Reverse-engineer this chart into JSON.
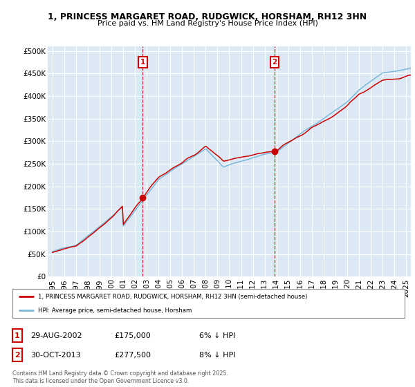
{
  "title1": "1, PRINCESS MARGARET ROAD, RUDGWICK, HORSHAM, RH12 3HN",
  "title2": "Price paid vs. HM Land Registry's House Price Index (HPI)",
  "bg_color": "#dce9f5",
  "ylim": [
    0,
    510000
  ],
  "yticks": [
    0,
    50000,
    100000,
    150000,
    200000,
    250000,
    300000,
    350000,
    400000,
    450000,
    500000
  ],
  "ytick_labels": [
    "£0",
    "£50K",
    "£100K",
    "£150K",
    "£200K",
    "£250K",
    "£300K",
    "£350K",
    "£400K",
    "£450K",
    "£500K"
  ],
  "xlim_start": 1994.6,
  "xlim_end": 2025.4,
  "xticks": [
    1995,
    1996,
    1997,
    1998,
    1999,
    2000,
    2001,
    2002,
    2003,
    2004,
    2005,
    2006,
    2007,
    2008,
    2009,
    2010,
    2011,
    2012,
    2013,
    2014,
    2015,
    2016,
    2017,
    2018,
    2019,
    2020,
    2021,
    2022,
    2023,
    2024,
    2025
  ],
  "sale1_date": 2002.66,
  "sale1_price": 175000,
  "sale2_date": 2013.83,
  "sale2_price": 277500,
  "hpi_line_color": "#7ab8d9",
  "price_line_color": "#cc0000",
  "dashed_line_color": "#cc0000",
  "legend_label1": "1, PRINCESS MARGARET ROAD, RUDGWICK, HORSHAM, RH12 3HN (semi-detached house)",
  "legend_label2": "HPI: Average price, semi-detached house, Horsham",
  "footer": "Contains HM Land Registry data © Crown copyright and database right 2025.\nThis data is licensed under the Open Government Licence v3.0.",
  "annotation1_date": "29-AUG-2002",
  "annotation1_price": "£175,000",
  "annotation1_note": "6% ↓ HPI",
  "annotation2_date": "30-OCT-2013",
  "annotation2_price": "£277,500",
  "annotation2_note": "8% ↓ HPI"
}
